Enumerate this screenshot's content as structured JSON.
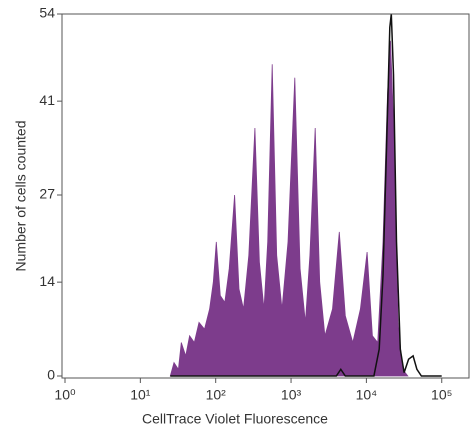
{
  "chart_data": {
    "type": "histogram-overlay",
    "xlabel": "CellTrace Violet Fluorescence",
    "ylabel": "Number of cells counted",
    "xscale": "log",
    "xlim": [
      1,
      230000
    ],
    "ylim": [
      0,
      54
    ],
    "xticks": [
      {
        "value": 1,
        "label": "10⁰"
      },
      {
        "value": 10,
        "label": "10¹"
      },
      {
        "value": 100,
        "label": "10²"
      },
      {
        "value": 1000,
        "label": "10³"
      },
      {
        "value": 10000,
        "label": "10⁴"
      },
      {
        "value": 100000,
        "label": "10⁵"
      }
    ],
    "yticks": [
      0,
      14,
      27,
      41,
      54
    ],
    "series": [
      {
        "style": "filled",
        "color": "#7d3c8c",
        "x": [
          25,
          28,
          32,
          35,
          40,
          45,
          52,
          60,
          71,
          83,
          93,
          102,
          115,
          132,
          151,
          178,
          204,
          234,
          275,
          331,
          380,
          437,
          490,
          562,
          646,
          759,
          912,
          1122,
          1318,
          1549,
          1778,
          2089,
          2399,
          2818,
          3548,
          4365,
          5248,
          6607,
          8318,
          10233,
          12023,
          14125,
          16596,
          19055,
          20893,
          22909,
          26303,
          30200,
          35481
        ],
        "values": [
          0,
          2,
          1,
          5,
          3,
          6,
          5,
          8,
          7,
          10,
          14,
          20,
          12,
          11,
          16,
          27,
          13,
          10,
          18,
          37,
          17,
          10,
          20,
          46.5,
          18,
          10,
          20,
          44.5,
          16,
          8,
          18,
          37,
          14,
          6,
          10,
          21.5,
          9,
          5,
          10,
          18.5,
          6,
          5,
          20,
          42,
          50,
          38,
          8,
          1,
          0
        ]
      },
      {
        "style": "line",
        "color": "#111111",
        "x": [
          25,
          3981,
          4571,
          5248,
          12589,
          14791,
          16596,
          18621,
          20417,
          21380,
          22909,
          25119,
          28184,
          31623,
          36308,
          41687,
          46774,
          53703,
          100000
        ],
        "values": [
          0,
          0,
          1,
          0,
          0,
          4,
          15,
          35,
          52,
          54,
          45,
          20,
          4,
          0.5,
          2.5,
          3,
          1,
          0,
          0
        ]
      }
    ]
  }
}
